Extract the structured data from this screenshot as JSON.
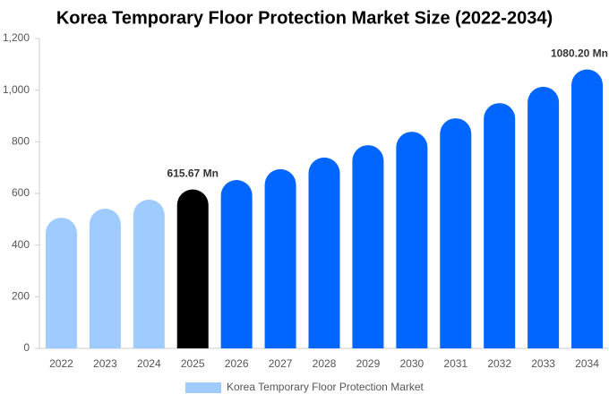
{
  "chart_data": {
    "type": "bar",
    "title": "Korea Temporary Floor Protection Market Size (2022-2034)",
    "categories": [
      "2022",
      "2023",
      "2024",
      "2025",
      "2026",
      "2027",
      "2028",
      "2029",
      "2030",
      "2031",
      "2032",
      "2033",
      "2034"
    ],
    "series": [
      {
        "name": "Korea Temporary Floor Protection Market",
        "color": "#a0cbff",
        "values": [
          506,
          541,
          576,
          615.67,
          652,
          694,
          739,
          787,
          839,
          891,
          950,
          1013,
          1080.2
        ],
        "colors": [
          "#a0cbff",
          "#a0cbff",
          "#a0cbff",
          "#000000",
          "#0066ff",
          "#0066ff",
          "#0066ff",
          "#0066ff",
          "#0066ff",
          "#0066ff",
          "#0066ff",
          "#0066ff",
          "#0066ff"
        ],
        "value_labels": [
          null,
          null,
          null,
          "615.67 Mn",
          null,
          null,
          null,
          null,
          null,
          null,
          null,
          null,
          "1080.20 Mn"
        ]
      }
    ],
    "ylim": [
      0,
      1200
    ],
    "yticks": [
      0,
      200,
      400,
      600,
      800,
      {
        "value": 1000,
        "label": "1,000"
      },
      {
        "value": 1200,
        "label": "1,200"
      }
    ],
    "legend": "bottom",
    "grid": false
  }
}
